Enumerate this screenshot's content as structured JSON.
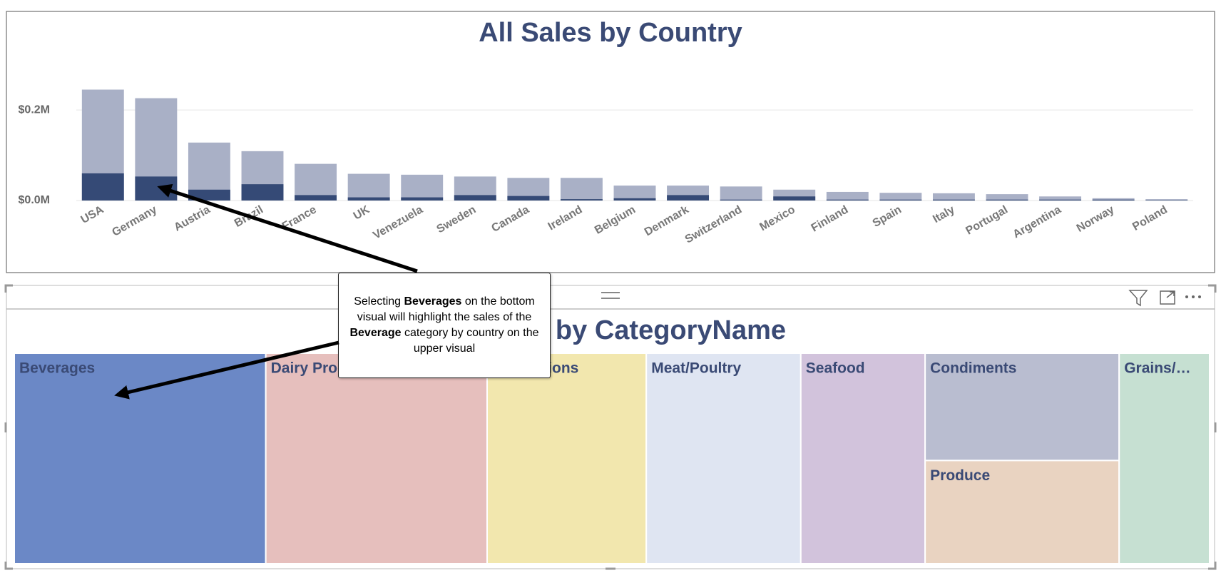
{
  "chart_data": [
    {
      "type": "bar",
      "title": "All Sales by Country",
      "categories": [
        "USA",
        "Germany",
        "Austria",
        "Brazil",
        "France",
        "UK",
        "Venezuela",
        "Sweden",
        "Canada",
        "Ireland",
        "Belgium",
        "Denmark",
        "Switzerland",
        "Mexico",
        "Finland",
        "Spain",
        "Italy",
        "Portugal",
        "Argentina",
        "Norway",
        "Poland"
      ],
      "series": [
        {
          "color": "#a9b0c6",
          "values": [
            245000,
            226000,
            128000,
            109000,
            81000,
            59000,
            57000,
            53000,
            50000,
            50000,
            33000,
            33000,
            31000,
            24000,
            19000,
            17000,
            16000,
            14000,
            9000,
            5000,
            3000
          ]
        },
        {
          "color": "#354a76",
          "values": [
            60000,
            53000,
            24000,
            36000,
            12000,
            7000,
            7000,
            12000,
            10000,
            3000,
            5000,
            12000,
            2000,
            9000,
            2000,
            2000,
            2000,
            2000,
            2000,
            2000,
            1000
          ]
        }
      ],
      "ylim": [
        0,
        290000
      ],
      "yticks": [
        {
          "value": 0,
          "label": "$0.0M"
        },
        {
          "value": 200000,
          "label": "$0.2M"
        }
      ],
      "grid": true
    },
    {
      "type": "treemap",
      "title": "All Sales by CategoryName",
      "categories": [
        "Beverages",
        "Dairy Products",
        "Confections",
        "Meat/Poultry",
        "Seafood",
        "Condiments",
        "Produce",
        "Grains/…"
      ],
      "values": [
        267000,
        235000,
        169000,
        164000,
        132000,
        105000,
        101000,
        96000
      ],
      "colors": [
        "#6b88c6",
        "#e6bfbd",
        "#f2e7ae",
        "#dfe5f2",
        "#d2c3dc",
        "#b9bdd0",
        "#e9d3c1",
        "#c6e0d2"
      ]
    }
  ],
  "callout": [
    "Selecting ",
    "Beverages",
    " on the bottom visual will highlight the sales of the ",
    "Beverage",
    " category by country on the upper visual"
  ]
}
